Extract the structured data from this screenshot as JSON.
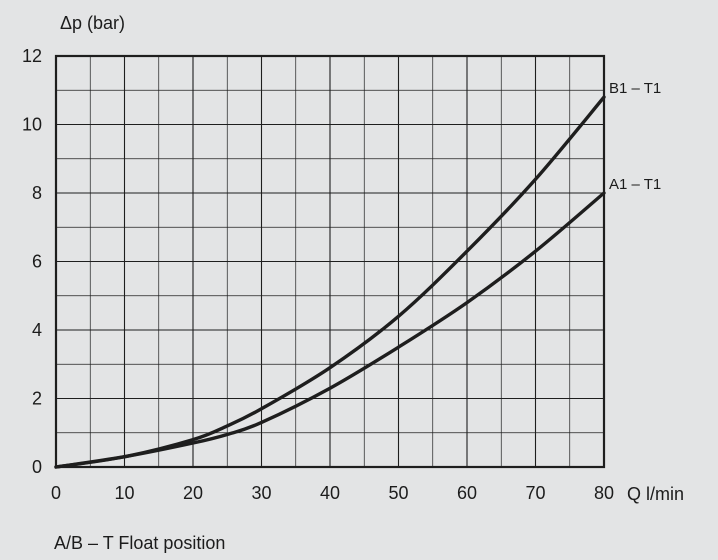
{
  "chart_data": {
    "type": "line",
    "ylabel": "Δp (bar)",
    "xlabel": "Q l/min",
    "caption": "A/B – T Float position",
    "xlim": [
      0,
      80
    ],
    "ylim": [
      0,
      12
    ],
    "xticks": [
      0,
      10,
      20,
      30,
      40,
      50,
      60,
      70,
      80
    ],
    "yticks": [
      0,
      2,
      4,
      6,
      8,
      10,
      12
    ],
    "x_minor_step": 5,
    "y_minor_step": 1,
    "grid": true,
    "series": [
      {
        "name": "B1 – T1",
        "x": [
          0,
          10,
          20,
          25,
          30,
          40,
          50,
          60,
          70,
          80
        ],
        "y": [
          0,
          0.3,
          0.8,
          1.2,
          1.7,
          2.9,
          4.4,
          6.3,
          8.4,
          10.8
        ]
      },
      {
        "name": "A1 – T1",
        "x": [
          0,
          10,
          20,
          25,
          30,
          40,
          50,
          60,
          70,
          80
        ],
        "y": [
          0,
          0.3,
          0.7,
          0.95,
          1.3,
          2.3,
          3.5,
          4.8,
          6.3,
          8.0
        ]
      }
    ],
    "colors": {
      "background": "#e3e4e5",
      "plot_background": "#e3e4e5",
      "grid": "#1e1e1e",
      "series": "#1e1e1e",
      "text": "#1c1c1c"
    }
  }
}
